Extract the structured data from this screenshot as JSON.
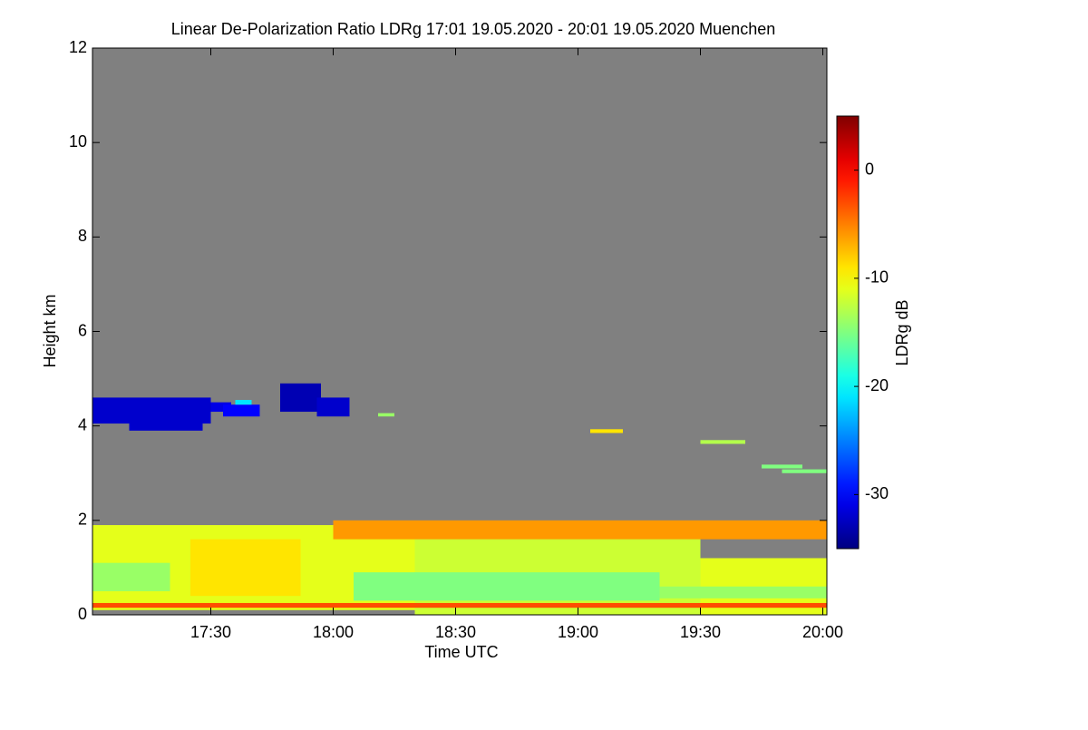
{
  "chart_data": {
    "type": "heatmap",
    "title": "Linear De-Polarization Ratio LDRg   17:01 19.05.2020 - 20:01 19.05.2020 Muenchen",
    "xlabel": "Time UTC",
    "ylabel": "Height km",
    "xlim": [
      "17:01",
      "20:01"
    ],
    "xticks": [
      "17:30",
      "18:00",
      "18:30",
      "19:00",
      "19:30",
      "20:00"
    ],
    "ylim": [
      0,
      12
    ],
    "yticks": [
      0,
      2,
      4,
      6,
      8,
      10,
      12
    ],
    "background": "#808080",
    "colormap": "jet",
    "colorbar": {
      "label": "LDRg dB",
      "lim": [
        -35,
        5
      ],
      "ticks": [
        0,
        -10,
        -20,
        -30
      ]
    },
    "cells": [
      {
        "x": [
          "17:01",
          "18:20"
        ],
        "y": [
          0.1,
          1.9
        ],
        "value": -11
      },
      {
        "x": [
          "17:25",
          "17:52"
        ],
        "y": [
          0.4,
          1.6
        ],
        "value": -9
      },
      {
        "x": [
          "18:20",
          "19:30"
        ],
        "y": [
          0.0,
          1.7
        ],
        "value": -12
      },
      {
        "x": [
          "19:30",
          "20:01"
        ],
        "y": [
          0.0,
          1.2
        ],
        "value": -11
      },
      {
        "x": [
          "18:05",
          "19:20"
        ],
        "y": [
          0.3,
          0.9
        ],
        "value": -15
      },
      {
        "x": [
          "17:01",
          "17:20"
        ],
        "y": [
          0.5,
          1.1
        ],
        "value": -14
      },
      {
        "x": [
          "19:20",
          "20:01"
        ],
        "y": [
          0.35,
          0.6
        ],
        "value": -14
      },
      {
        "x": [
          "17:01",
          "20:01"
        ],
        "y": [
          0.15,
          0.25
        ],
        "value": -3
      },
      {
        "x": [
          "18:00",
          "20:01"
        ],
        "y": [
          1.6,
          2.0
        ],
        "value": -6
      },
      {
        "x": [
          "17:01",
          "17:30"
        ],
        "y": [
          4.05,
          4.6
        ],
        "value": -32
      },
      {
        "x": [
          "17:10",
          "17:28"
        ],
        "y": [
          3.9,
          4.1
        ],
        "value": -32
      },
      {
        "x": [
          "17:30",
          "17:35"
        ],
        "y": [
          4.3,
          4.5
        ],
        "value": -31
      },
      {
        "x": [
          "17:33",
          "17:42"
        ],
        "y": [
          4.2,
          4.45
        ],
        "value": -30
      },
      {
        "x": [
          "17:36",
          "17:40"
        ],
        "y": [
          4.45,
          4.55
        ],
        "value": -21
      },
      {
        "x": [
          "17:47",
          "17:57"
        ],
        "y": [
          4.3,
          4.9
        ],
        "value": -33
      },
      {
        "x": [
          "17:56",
          "18:04"
        ],
        "y": [
          4.2,
          4.6
        ],
        "value": -32
      },
      {
        "x": [
          "18:11",
          "18:15"
        ],
        "y": [
          4.2,
          4.27
        ],
        "value": -14
      },
      {
        "x": [
          "19:03",
          "19:11"
        ],
        "y": [
          3.85,
          3.93
        ],
        "value": -9
      },
      {
        "x": [
          "19:30",
          "19:41"
        ],
        "y": [
          3.62,
          3.7
        ],
        "value": -13
      },
      {
        "x": [
          "19:45",
          "19:55"
        ],
        "y": [
          3.1,
          3.18
        ],
        "value": -15
      },
      {
        "x": [
          "19:50",
          "20:01"
        ],
        "y": [
          3.0,
          3.08
        ],
        "value": -15
      }
    ]
  }
}
